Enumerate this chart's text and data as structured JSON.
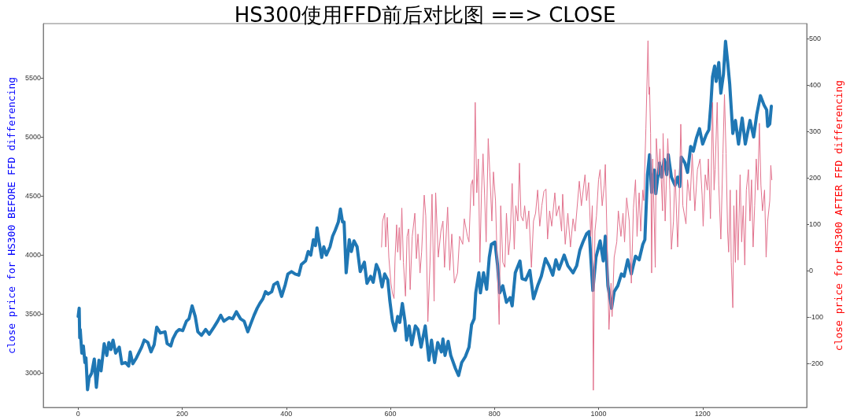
{
  "chart_data": {
    "type": "line",
    "title": "HS300使用FFD前后对比图 ==> CLOSE",
    "ylabel": "close price for HS300 BEFORE FFD differencing",
    "y2label": "close price for HS300 AFTER FFD differencing",
    "xlim": [
      -67,
      1400
    ],
    "xticks": [
      0,
      200,
      400,
      600,
      800,
      1000,
      1200
    ],
    "ylim": [
      2710,
      5960
    ],
    "yticks": [
      3000,
      3500,
      4000,
      4500,
      5000,
      5500
    ],
    "y2lim": [
      -295,
      533
    ],
    "y2ticks": [
      -200,
      -100,
      0,
      100,
      200,
      300,
      400,
      500
    ],
    "grid": false,
    "marker": "none",
    "line_style": "solid",
    "series": [
      {
        "color": "#1f77b4",
        "x": [
          0,
          2,
          3,
          4,
          7,
          10,
          13,
          15,
          18,
          21,
          26,
          31,
          35,
          40,
          44,
          50,
          55,
          59,
          63,
          67,
          72,
          79,
          84,
          91,
          97,
          100,
          105,
          112,
          122,
          127,
          134,
          140,
          146,
          151,
          158,
          167,
          171,
          178,
          182,
          189,
          194,
          201,
          208,
          213,
          219,
          225,
          230,
          237,
          245,
          252,
          261,
          268,
          274,
          280,
          290,
          297,
          304,
          312,
          319,
          326,
          331,
          338,
          344,
          349,
          355,
          360,
          365,
          372,
          376,
          383,
          391,
          398,
          403,
          410,
          417,
          424,
          429,
          437,
          442,
          447,
          452,
          456,
          459,
          463,
          468,
          472,
          477,
          484,
          489,
          494,
          500,
          504,
          508,
          511,
          515,
          521,
          525,
          530,
          536,
          542,
          550,
          555,
          562,
          567,
          573,
          578,
          584,
          589,
          595,
          599,
          604,
          609,
          614,
          618,
          623,
          628,
          631,
          636,
          641,
          648,
          653,
          659,
          667,
          674,
          679,
          685,
          691,
          698,
          701,
          705,
          711,
          716,
          725,
          731,
          737,
          744,
          751,
          756,
          761,
          764,
          770,
          773,
          779,
          785,
          790,
          794,
          801,
          806,
          810,
          816,
          823,
          830,
          834,
          840,
          849,
          853,
          860,
          868,
          875,
          883,
          890,
          898,
          905,
          912,
          918,
          924,
          934,
          941,
          951,
          958,
          964,
          970,
          977,
          982,
          989,
          995,
          1003,
          1009,
          1013,
          1018,
          1025,
          1030,
          1037,
          1044,
          1049,
          1056,
          1063,
          1071,
          1078,
          1085,
          1089,
          1094,
          1098,
          1102,
          1107,
          1110,
          1117,
          1121,
          1126,
          1131,
          1134,
          1140,
          1147,
          1152,
          1156,
          1159,
          1166,
          1171,
          1177,
          1182,
          1188,
          1194,
          1200,
          1207,
          1212,
          1216,
          1219,
          1223,
          1226,
          1231,
          1235,
          1240,
          1244,
          1248,
          1252,
          1258,
          1263,
          1269,
          1276,
          1282,
          1291,
          1298,
          1304,
          1311,
          1318,
          1323,
          1325,
          1329,
          1332
        ],
        "values": [
          3480,
          3550,
          3300,
          3370,
          3170,
          3230,
          3090,
          3130,
          2860,
          2960,
          3000,
          3120,
          2880,
          3110,
          3020,
          3250,
          3150,
          3260,
          3200,
          3280,
          3170,
          3220,
          3080,
          3090,
          3060,
          3180,
          3080,
          3130,
          3220,
          3280,
          3260,
          3180,
          3240,
          3390,
          3340,
          3350,
          3250,
          3230,
          3290,
          3350,
          3370,
          3360,
          3440,
          3460,
          3570,
          3480,
          3350,
          3320,
          3370,
          3330,
          3390,
          3440,
          3490,
          3440,
          3470,
          3460,
          3520,
          3460,
          3440,
          3350,
          3410,
          3490,
          3550,
          3590,
          3630,
          3690,
          3670,
          3690,
          3750,
          3770,
          3650,
          3750,
          3840,
          3860,
          3840,
          3830,
          3920,
          3950,
          4030,
          4000,
          4130,
          4080,
          4230,
          4110,
          3980,
          4070,
          4000,
          4070,
          4160,
          4210,
          4280,
          4390,
          4280,
          4280,
          3850,
          4130,
          4030,
          4120,
          4070,
          3860,
          3940,
          3760,
          3820,
          3770,
          3920,
          3870,
          3730,
          3840,
          3790,
          3610,
          3440,
          3360,
          3480,
          3430,
          3590,
          3440,
          3280,
          3400,
          3240,
          3400,
          3370,
          3220,
          3400,
          3110,
          3280,
          3090,
          3260,
          3180,
          3290,
          3150,
          3270,
          3150,
          3040,
          2980,
          3090,
          3140,
          3220,
          3410,
          3460,
          3680,
          3850,
          3680,
          3850,
          3710,
          3980,
          4090,
          4110,
          3910,
          3680,
          3740,
          3600,
          3640,
          3570,
          3850,
          3950,
          3800,
          3790,
          3870,
          3630,
          3740,
          3820,
          3970,
          3910,
          3830,
          3960,
          3880,
          4000,
          3910,
          3850,
          3910,
          4040,
          4110,
          4180,
          4200,
          3700,
          3980,
          4120,
          3950,
          4160,
          3740,
          3550,
          3690,
          3740,
          3840,
          3820,
          3960,
          3840,
          3990,
          3960,
          4090,
          4130,
          4680,
          4850,
          4530,
          4720,
          4520,
          4780,
          4660,
          4810,
          4680,
          4850,
          4660,
          4590,
          4660,
          4580,
          4830,
          4780,
          4700,
          4920,
          4880,
          4990,
          5070,
          4940,
          5020,
          5060,
          5290,
          5510,
          5600,
          5470,
          5630,
          5370,
          5530,
          5810,
          5640,
          5450,
          5030,
          5140,
          4940,
          5160,
          4940,
          5140,
          5000,
          5190,
          5350,
          5270,
          5230,
          5090,
          5110,
          5260
        ]
      },
      {
        "color": "#e2738e",
        "axis": "y2",
        "x": [
          583,
          585,
          589,
          591,
          594,
          597,
          601,
          604,
          607,
          609,
          612,
          614,
          617,
          619,
          622,
          625,
          629,
          632,
          635,
          638,
          642,
          647,
          650,
          653,
          657,
          660,
          665,
          668,
          671,
          672,
          676,
          680,
          684,
          687,
          692,
          697,
          701,
          704,
          710,
          714,
          718,
          723,
          729,
          733,
          739,
          742,
          748,
          751,
          755,
          758,
          760,
          763,
          766,
          769,
          772,
          775,
          778,
          781,
          784,
          788,
          791,
          795,
          798,
          802,
          805,
          809,
          812,
          816,
          820,
          823,
          827,
          830,
          834,
          838,
          841,
          845,
          848,
          851,
          855,
          858,
          862,
          866,
          871,
          875,
          879,
          883,
          887,
          891,
          895,
          899,
          902,
          906,
          910,
          916,
          919,
          924,
          929,
          931,
          936,
          941,
          946,
          951,
          955,
          963,
          967,
          974,
          977,
          981,
          985,
          988,
          990,
          993,
          996,
          1000,
          1003,
          1007,
          1011,
          1013,
          1016,
          1020,
          1024,
          1026,
          1030,
          1035,
          1038,
          1043,
          1047,
          1050,
          1054,
          1059,
          1063,
          1067,
          1071,
          1074,
          1078,
          1081,
          1085,
          1087,
          1091,
          1095,
          1097,
          1098,
          1100,
          1102,
          1104,
          1107,
          1109,
          1111,
          1115,
          1118,
          1123,
          1124,
          1128,
          1133,
          1137,
          1140,
          1144,
          1147,
          1152,
          1155,
          1158,
          1162,
          1168,
          1171,
          1176,
          1180,
          1185,
          1190,
          1195,
          1199,
          1201,
          1205,
          1209,
          1211,
          1215,
          1219,
          1222,
          1224,
          1228,
          1231,
          1235,
          1239,
          1242,
          1245,
          1248,
          1250,
          1253,
          1255,
          1258,
          1260,
          1263,
          1265,
          1268,
          1272,
          1275,
          1278,
          1281,
          1284,
          1288,
          1291,
          1294,
          1297,
          1300,
          1303,
          1306,
          1309,
          1312,
          1315,
          1319,
          1322,
          1325,
          1329,
          1331,
          1333
        ],
        "values": [
          51,
          107,
          124,
          51,
          115,
          29,
          -27,
          -49,
          -60,
          29,
          99,
          40,
          93,
          23,
          135,
          18,
          -55,
          74,
          90,
          -41,
          74,
          124,
          26,
          79,
          -5,
          40,
          163,
          118,
          -49,
          -110,
          12,
          165,
          -66,
          168,
          29,
          85,
          107,
          7,
          137,
          1,
          79,
          -27,
          -5,
          74,
          57,
          112,
          74,
          62,
          185,
          196,
          140,
          363,
          168,
          241,
          18,
          168,
          252,
          163,
          62,
          285,
          213,
          107,
          213,
          151,
          29,
          -116,
          140,
          18,
          7,
          124,
          34,
          68,
          188,
          46,
          140,
          107,
          232,
          118,
          107,
          140,
          90,
          129,
          7,
          107,
          124,
          174,
          96,
          140,
          171,
          176,
          68,
          129,
          96,
          168,
          118,
          140,
          85,
          165,
          57,
          124,
          51,
          112,
          85,
          193,
          140,
          207,
          151,
          190,
          74,
          140,
          -258,
          85,
          118,
          196,
          218,
          140,
          185,
          229,
          85,
          -127,
          -27,
          -99,
          29,
          62,
          129,
          74,
          124,
          62,
          157,
          107,
          -27,
          135,
          196,
          74,
          168,
          85,
          174,
          151,
          307,
          496,
          380,
          396,
          296,
          -5,
          241,
          107,
          7,
          285,
          207,
          263,
          129,
          296,
          107,
          285,
          174,
          46,
          107,
          218,
          51,
          151,
          316,
          140,
          101,
          196,
          151,
          252,
          129,
          218,
          241,
          163,
          96,
          207,
          174,
          241,
          112,
          363,
          174,
          218,
          363,
          185,
          68,
          252,
          380,
          252,
          85,
          40,
          174,
          18,
          -80,
          140,
          18,
          174,
          23,
          207,
          62,
          140,
          12,
          174,
          218,
          107,
          196,
          51,
          140,
          241,
          174,
          318,
          185,
          129,
          174,
          29,
          107,
          151,
          227,
          196
        ]
      }
    ]
  }
}
